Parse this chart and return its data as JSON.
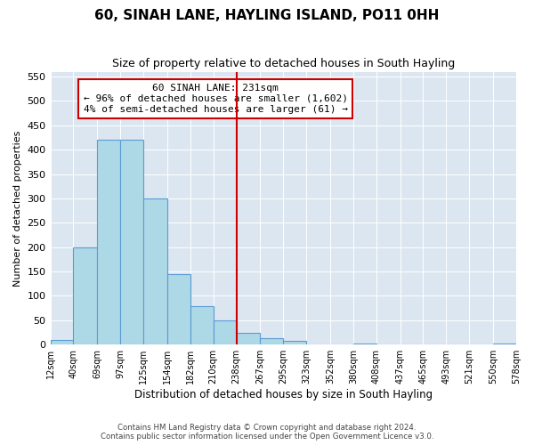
{
  "title": "60, SINAH LANE, HAYLING ISLAND, PO11 0HH",
  "subtitle": "Size of property relative to detached houses in South Hayling",
  "xlabel": "Distribution of detached houses by size in South Hayling",
  "ylabel": "Number of detached properties",
  "bin_edges": [
    12,
    40,
    69,
    97,
    125,
    154,
    182,
    210,
    238,
    267,
    295,
    323,
    352,
    380,
    408,
    437,
    465,
    493,
    521,
    550,
    578
  ],
  "bin_counts": [
    10,
    200,
    420,
    420,
    300,
    145,
    78,
    50,
    25,
    13,
    8,
    0,
    0,
    2,
    0,
    0,
    0,
    0,
    0,
    2
  ],
  "ylim": [
    0,
    560
  ],
  "yticks": [
    0,
    50,
    100,
    150,
    200,
    250,
    300,
    350,
    400,
    450,
    500,
    550
  ],
  "bar_color": "#add8e6",
  "bar_edge_color": "#5b9bd5",
  "vline_x": 238,
  "vline_color": "#cc0000",
  "annotation_title": "60 SINAH LANE: 231sqm",
  "annotation_line1": "← 96% of detached houses are smaller (1,602)",
  "annotation_line2": "4% of semi-detached houses are larger (61) →",
  "annotation_box_color": "#cc0000",
  "footnote1": "Contains HM Land Registry data © Crown copyright and database right 2024.",
  "footnote2": "Contains public sector information licensed under the Open Government Licence v3.0.",
  "background_color": "#dce6f0",
  "tick_labels": [
    "12sqm",
    "40sqm",
    "69sqm",
    "97sqm",
    "125sqm",
    "154sqm",
    "182sqm",
    "210sqm",
    "238sqm",
    "267sqm",
    "295sqm",
    "323sqm",
    "352sqm",
    "380sqm",
    "408sqm",
    "437sqm",
    "465sqm",
    "493sqm",
    "521sqm",
    "550sqm",
    "578sqm"
  ]
}
